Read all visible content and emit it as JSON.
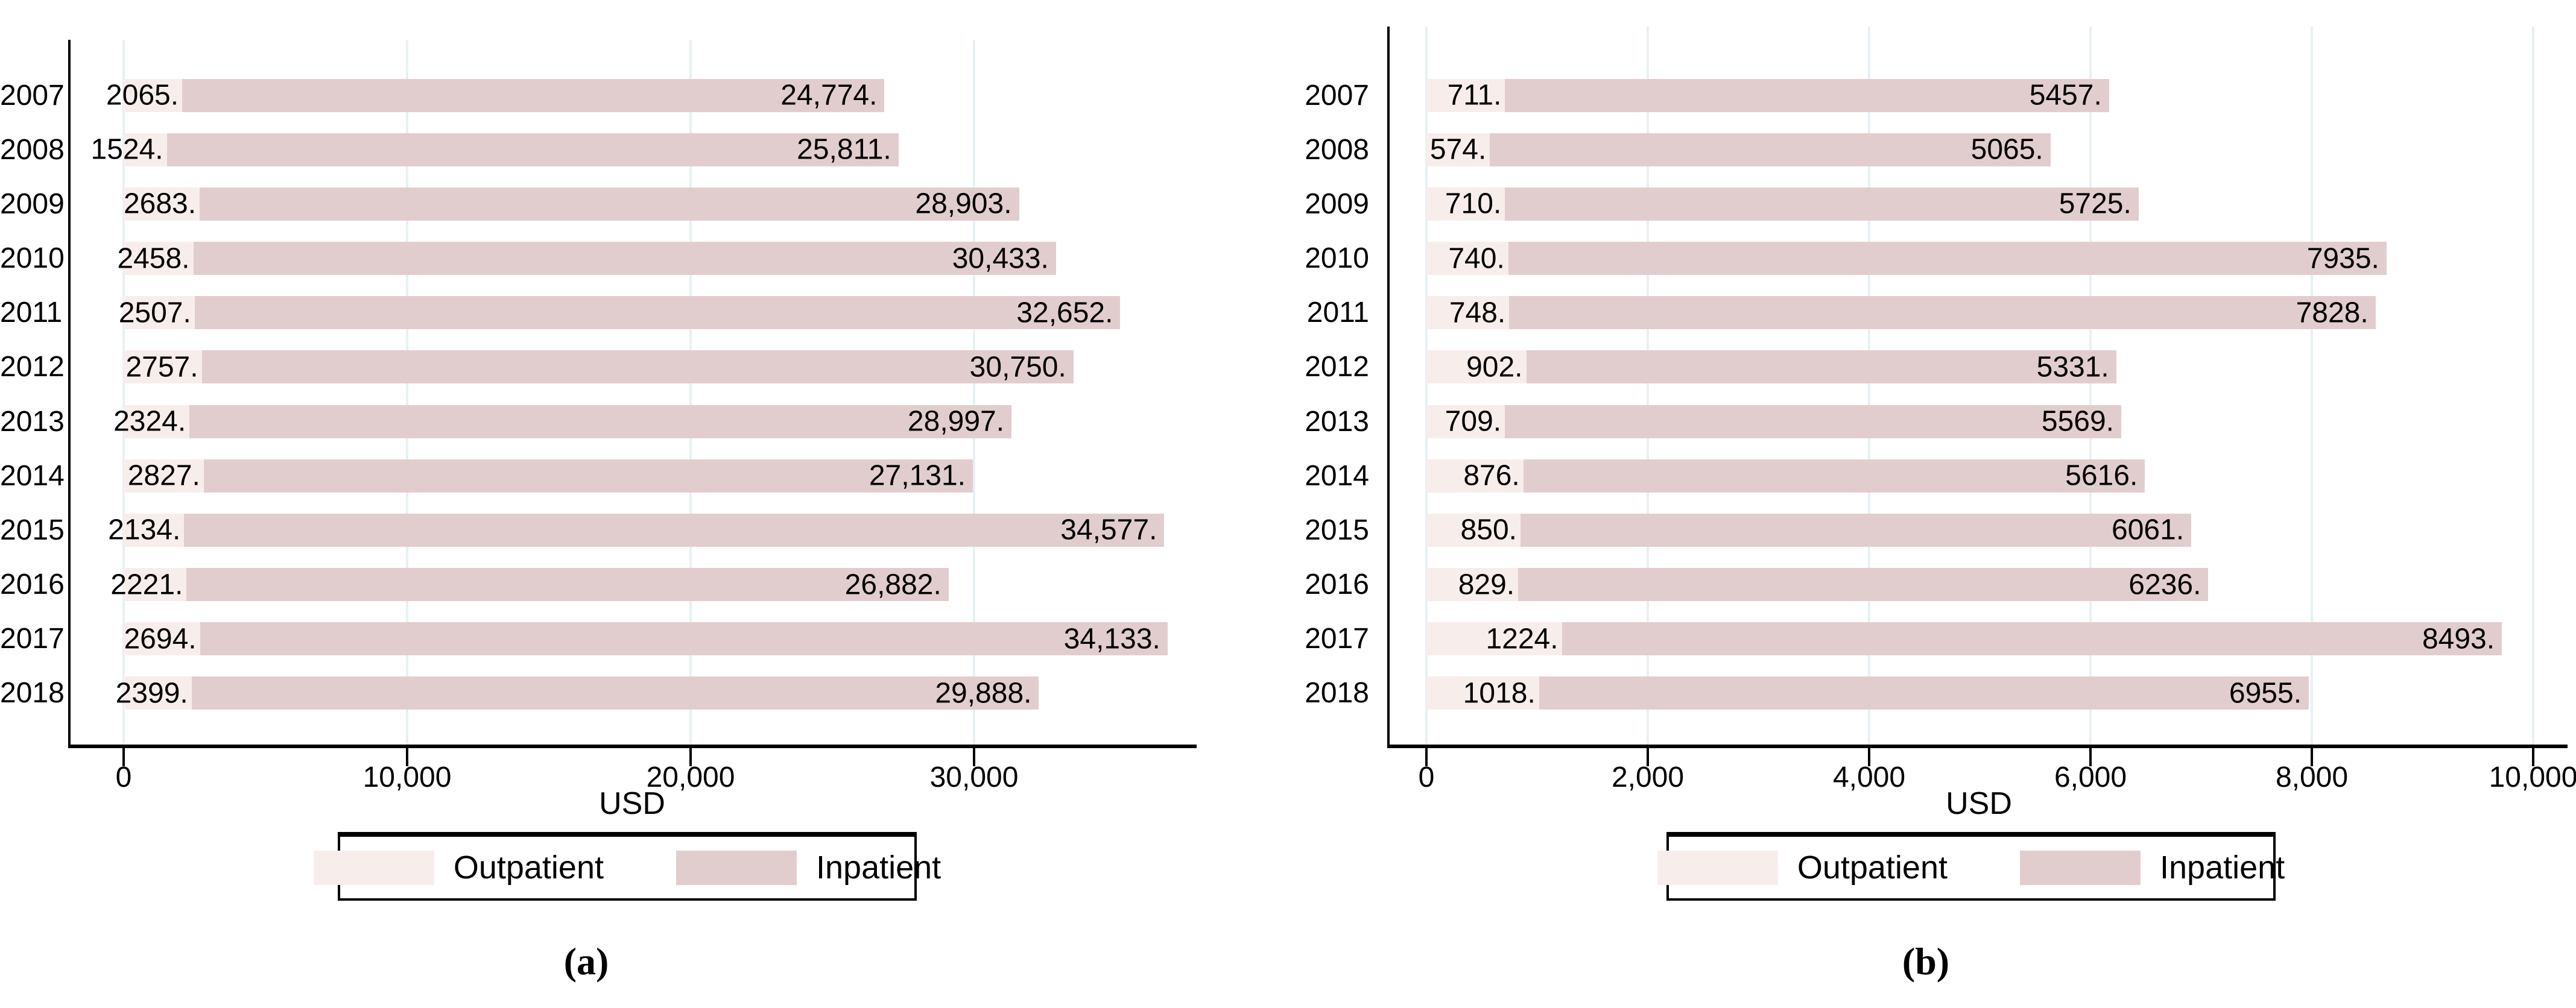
{
  "colors": {
    "outpatient": "#f7eeec",
    "inpatient": "#e2cdce",
    "gridline": "#e8f1f2",
    "axis": "#000000",
    "text": "#000000",
    "legend_border": "#000000"
  },
  "chart_data": [
    {
      "id": "a",
      "type": "bar",
      "orientation": "horizontal",
      "stacked": true,
      "title": "",
      "caption": "(a)",
      "xlabel": "USD",
      "grid": true,
      "legend_position": "bottom",
      "legend": [
        "Outpatient",
        "Inpatient"
      ],
      "categories": [
        "2007",
        "2008",
        "2009",
        "2010",
        "2011",
        "2012",
        "2013",
        "2014",
        "2015",
        "2016",
        "2017",
        "2018"
      ],
      "series": [
        {
          "name": "Outpatient",
          "color_key": "outpatient",
          "values": [
            2065,
            1524,
            2683,
            2458,
            2507,
            2757,
            2324,
            2827,
            2134,
            2221,
            2694,
            2399
          ],
          "labels": [
            "2065.",
            "1524.",
            "2683.",
            "2458.",
            "2507.",
            "2757.",
            "2324.",
            "2827.",
            "2134.",
            "2221.",
            "2694.",
            "2399."
          ]
        },
        {
          "name": "Inpatient",
          "color_key": "inpatient",
          "values": [
            24774,
            25811,
            28903,
            30433,
            32652,
            30750,
            28997,
            27131,
            34577,
            26882,
            34133,
            29888
          ],
          "labels": [
            "24,774.",
            "25,811.",
            "28,903.",
            "30,433.",
            "32,652.",
            "30,750.",
            "28,997.",
            "27,131.",
            "34,577.",
            "26,882.",
            "34,133.",
            "29,888."
          ]
        }
      ],
      "x_ticks": [
        {
          "value": 0,
          "label": "0"
        },
        {
          "value": 10000,
          "label": "10,000"
        },
        {
          "value": 20000,
          "label": "20,000"
        },
        {
          "value": 30000,
          "label": "30,000"
        }
      ],
      "xlim": [
        0,
        37850
      ]
    },
    {
      "id": "b",
      "type": "bar",
      "orientation": "horizontal",
      "stacked": true,
      "title": "",
      "caption": "(b)",
      "xlabel": "USD",
      "grid": true,
      "legend_position": "bottom",
      "legend": [
        "Outpatient",
        "Inpatient"
      ],
      "categories": [
        "2007",
        "2008",
        "2009",
        "2010",
        "2011",
        "2012",
        "2013",
        "2014",
        "2015",
        "2016",
        "2017",
        "2018"
      ],
      "series": [
        {
          "name": "Outpatient",
          "color_key": "outpatient",
          "values": [
            711,
            574,
            710,
            740,
            748,
            902,
            709,
            876,
            850,
            829,
            1224,
            1018
          ],
          "labels": [
            "711.",
            "574.",
            "710.",
            "740.",
            "748.",
            "902.",
            "709.",
            "876.",
            "850.",
            "829.",
            "1224.",
            "1018."
          ]
        },
        {
          "name": "Inpatient",
          "color_key": "inpatient",
          "values": [
            5457,
            5065,
            5725,
            7935,
            7828,
            5331,
            5569,
            5616,
            6061,
            6236,
            8493,
            6955
          ],
          "labels": [
            "5457.",
            "5065.",
            "5725.",
            "7935.",
            "7828.",
            "5331.",
            "5569.",
            "5616.",
            "6061.",
            "6236.",
            "8493.",
            "6955."
          ]
        }
      ],
      "x_ticks": [
        {
          "value": 0,
          "label": "0"
        },
        {
          "value": 2000,
          "label": "2,000"
        },
        {
          "value": 4000,
          "label": "4,000"
        },
        {
          "value": 6000,
          "label": "6,000"
        },
        {
          "value": 8000,
          "label": "8,000"
        },
        {
          "value": 10000,
          "label": "10,000"
        }
      ],
      "xlim": [
        0,
        10310
      ]
    }
  ]
}
